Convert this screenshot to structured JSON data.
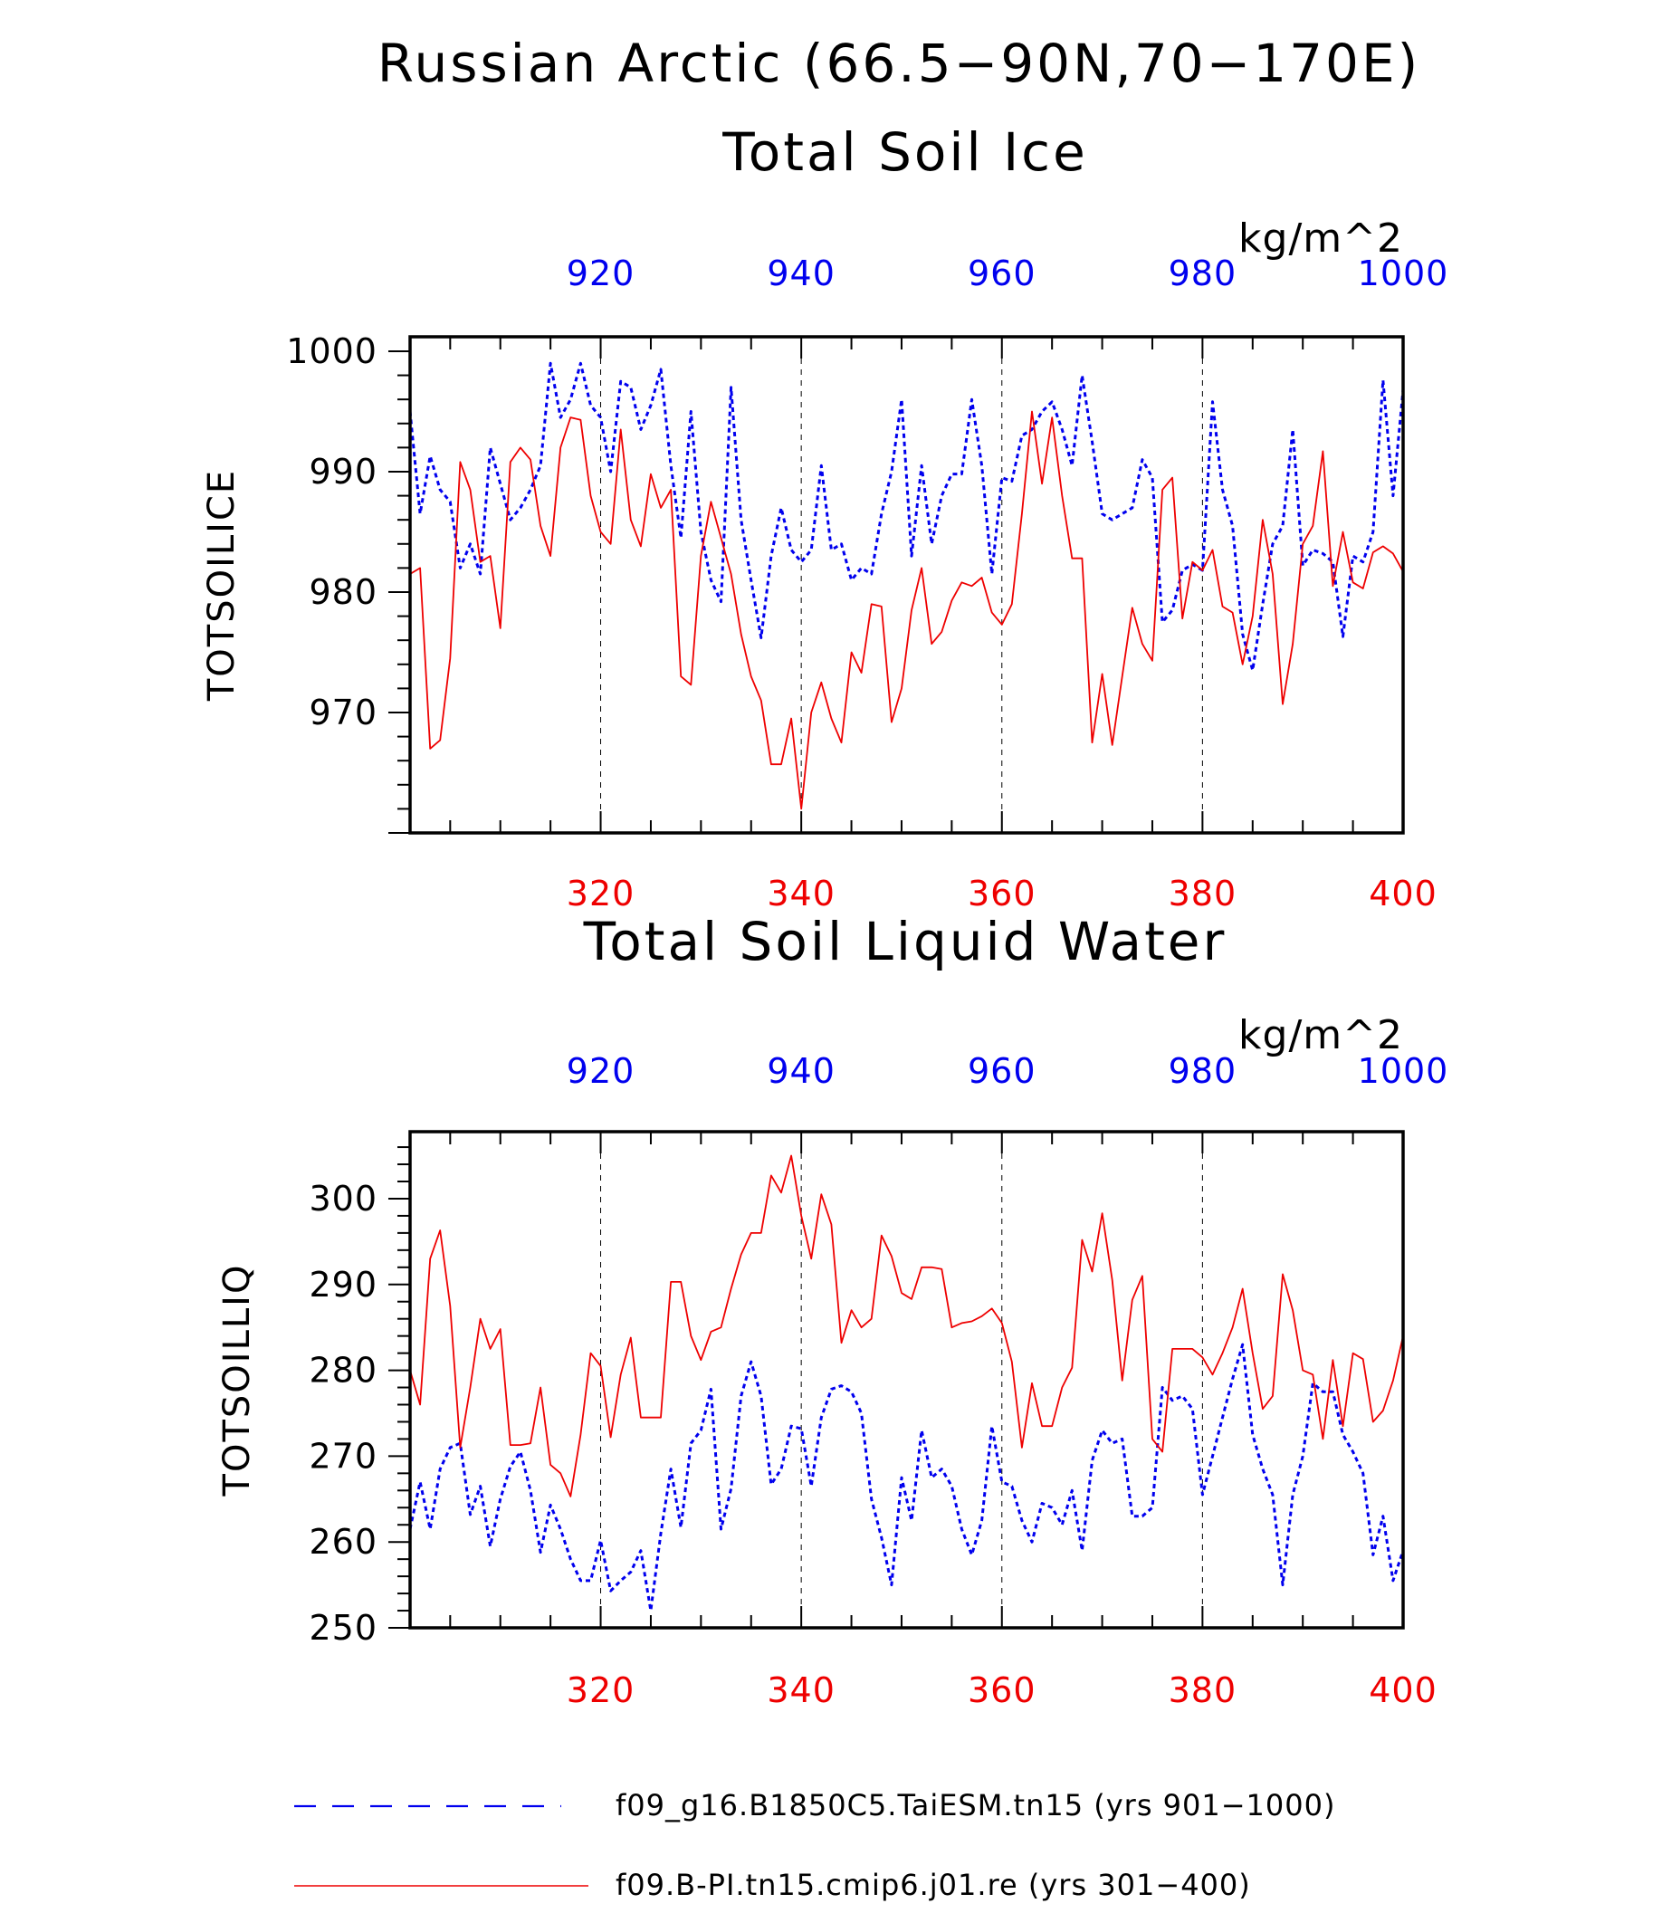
{
  "figure": {
    "title": "Russian Arctic (66.5−90N,70−170E)",
    "colors": {
      "blue": "#0000ee",
      "red": "#ee0000",
      "axis": "#000000"
    }
  },
  "chart_data": [
    {
      "type": "line",
      "title": "Total Soil Ice",
      "ylabel": "TOTSOILICE",
      "units": "kg/m^2",
      "ylim": [
        960,
        1001.2
      ],
      "yticks": [
        970,
        980,
        990,
        1000
      ],
      "grid": "vertical dashed at bottom-axis major ticks",
      "x_bottom": {
        "range": [
          301,
          400
        ],
        "ticks": [
          320,
          340,
          360,
          380,
          400
        ],
        "color": "red"
      },
      "x_top": {
        "range": [
          901,
          1000
        ],
        "ticks": [
          920,
          940,
          960,
          980,
          1000
        ],
        "color": "blue"
      },
      "series": [
        {
          "name": "f09_g16.B1850C5.TaiESM.tn15 (yrs 901−1000)",
          "color": "blue",
          "style": "dashed",
          "axis": "top",
          "values": [
            995,
            986.5,
            991.3,
            988.5,
            987.5,
            982,
            984,
            981.5,
            992,
            989,
            986,
            987,
            988.5,
            990.5,
            999,
            994.5,
            996,
            999,
            995.5,
            994.5,
            990,
            997.5,
            997,
            993.5,
            995.5,
            998.5,
            990.5,
            984.5,
            995,
            985,
            981,
            979.2,
            997,
            986,
            981,
            976.2,
            983,
            987,
            983.5,
            982.5,
            983.5,
            990.5,
            983.5,
            984,
            981,
            982,
            981.5,
            986.5,
            990,
            996,
            983,
            990.5,
            984,
            988,
            989.8,
            989.8,
            996,
            990.5,
            981.5,
            989.5,
            989.2,
            993,
            993.5,
            995,
            995.8,
            993.5,
            990.5,
            998,
            992.5,
            986.5,
            986,
            986.5,
            987,
            991,
            989.5,
            977.5,
            978.5,
            981.8,
            982.3,
            981.8,
            995.8,
            988.5,
            985.5,
            976.5,
            973.5,
            979,
            984,
            985.5,
            993.5,
            982.2,
            983.5,
            983.2,
            982.5,
            976.3,
            983,
            982.5,
            985,
            997.6,
            988,
            996.8
          ]
        },
        {
          "name": "f09.B-PI.tn15.cmip6.j01.re (yrs 301−400)",
          "color": "red",
          "style": "solid",
          "axis": "bottom",
          "values": [
            981.5,
            982,
            967,
            967.7,
            974.5,
            990.8,
            988.5,
            982.5,
            983,
            977,
            990.8,
            992,
            991,
            985.5,
            983,
            992,
            994.5,
            994.3,
            988,
            985,
            984,
            993.5,
            986,
            983.8,
            989.8,
            987,
            988.5,
            973,
            972.3,
            983,
            987.5,
            984.5,
            981.5,
            976.5,
            973,
            971,
            965.7,
            965.7,
            969.5,
            962,
            970,
            972.5,
            969.5,
            967.5,
            975,
            973.3,
            979,
            978.8,
            969.2,
            972,
            978.5,
            982,
            975.7,
            976.7,
            979.3,
            980.8,
            980.5,
            981.2,
            978.3,
            977.3,
            979,
            986.5,
            995,
            989,
            994.5,
            988,
            982.8,
            982.8,
            967.5,
            973.2,
            967.3,
            973,
            978.7,
            975.7,
            974.3,
            988.5,
            989.5,
            977.8,
            982.5,
            981.8,
            983.5,
            978.8,
            978.3,
            974,
            978,
            986,
            981.5,
            970.7,
            975.7,
            984,
            985.5,
            991.7,
            980.5,
            985,
            980.8,
            980.3,
            983.3,
            983.8,
            983.2,
            981.7
          ]
        }
      ]
    },
    {
      "type": "line",
      "title": "Total Soil Liquid Water",
      "ylabel": "TOTSOILLIQ",
      "units": "kg/m^2",
      "ylim": [
        250,
        307.8
      ],
      "yticks": [
        250,
        260,
        270,
        280,
        290,
        300
      ],
      "grid": "vertical dashed at bottom-axis major ticks",
      "x_bottom": {
        "range": [
          301,
          400
        ],
        "ticks": [
          320,
          340,
          360,
          380,
          400
        ],
        "color": "red"
      },
      "x_top": {
        "range": [
          901,
          1000
        ],
        "ticks": [
          920,
          940,
          960,
          980,
          1000
        ],
        "color": "blue"
      },
      "series": [
        {
          "name": "f09_g16.B1850C5.TaiESM.tn15 (yrs 901−1000)",
          "color": "blue",
          "style": "dashed",
          "axis": "top",
          "values": [
            261.5,
            267,
            261.5,
            268.5,
            271,
            271.5,
            263.2,
            266.5,
            259.5,
            265,
            268.8,
            270.5,
            266,
            258.8,
            264.3,
            261.5,
            258,
            255.5,
            255.5,
            260.2,
            254.3,
            255.5,
            256.5,
            259,
            252,
            261,
            268.5,
            261.7,
            271.5,
            273,
            277.8,
            261.5,
            266.2,
            277,
            281,
            277,
            266.7,
            268.5,
            273.5,
            273.2,
            266.5,
            274.5,
            277.8,
            278.2,
            277.5,
            275,
            265,
            260.5,
            255,
            267.5,
            262.5,
            273,
            267.5,
            268.5,
            266.5,
            261.5,
            258.5,
            262.5,
            273.5,
            267,
            266.5,
            262.5,
            260,
            264.5,
            264,
            262,
            266,
            259,
            269.5,
            273,
            271.5,
            272,
            263,
            263,
            264,
            278,
            276.5,
            277,
            275.5,
            265.5,
            270,
            274.5,
            279,
            283,
            272.5,
            268.5,
            265.5,
            255,
            265.5,
            270,
            278.5,
            277.5,
            277.5,
            272.5,
            270.5,
            268,
            258.5,
            263,
            255.5,
            259
          ]
        },
        {
          "name": "f09.B-PI.tn15.cmip6.j01.re (yrs 301−400)",
          "color": "red",
          "style": "solid",
          "axis": "bottom",
          "values": [
            280,
            276,
            293,
            296.3,
            287.5,
            271,
            278,
            286,
            282.5,
            284.8,
            271.3,
            271.3,
            271.5,
            278,
            269,
            268,
            265.3,
            272.5,
            282,
            280.5,
            272.2,
            279.5,
            283.8,
            274.5,
            274.5,
            274.5,
            290.3,
            290.3,
            284,
            281.2,
            284.5,
            285,
            289.5,
            293.5,
            296,
            296,
            302.7,
            300.7,
            305,
            298,
            293,
            300.5,
            297,
            283.2,
            287,
            285,
            286,
            295.7,
            293.3,
            289,
            288.3,
            292,
            292,
            291.8,
            285,
            285.5,
            285.7,
            286.3,
            287.2,
            285.5,
            281,
            271,
            278.5,
            273.5,
            273.5,
            278,
            280.3,
            295.2,
            291.5,
            298.3,
            290.5,
            278.8,
            288.2,
            291,
            272,
            270.5,
            282.5,
            282.5,
            282.5,
            281.5,
            279.5,
            282,
            285,
            289.5,
            282,
            275.5,
            277,
            291.2,
            287,
            280,
            279.5,
            272,
            281.2,
            273.5,
            282,
            281.3,
            274,
            275.3,
            278.8,
            284
          ]
        }
      ]
    }
  ],
  "legend": {
    "items": [
      {
        "label": "f09_g16.B1850C5.TaiESM.tn15 (yrs 901−1000)",
        "color": "blue",
        "style": "dashed"
      },
      {
        "label": "f09.B-PI.tn15.cmip6.j01.re (yrs 301−400)",
        "color": "red",
        "style": "solid"
      }
    ]
  }
}
